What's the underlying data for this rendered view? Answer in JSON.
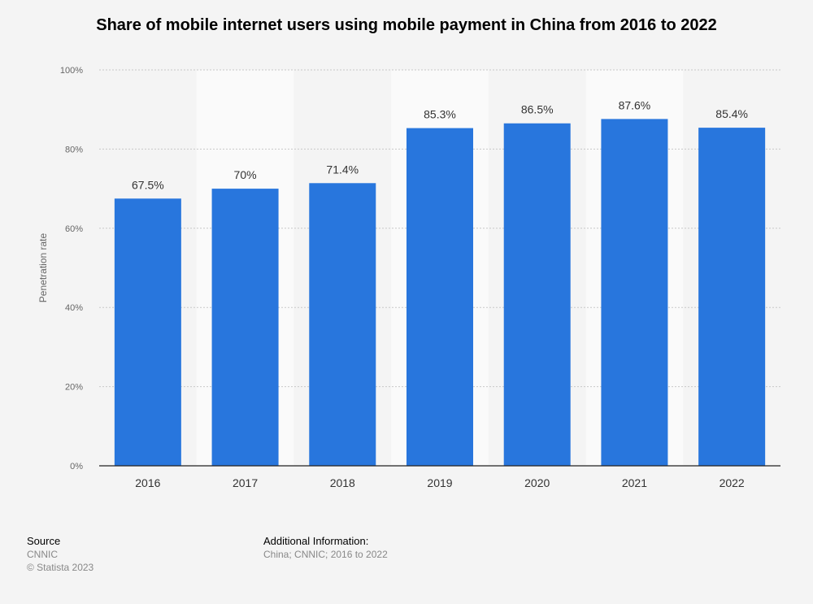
{
  "chart_data": {
    "type": "bar",
    "title": "Share of mobile internet users using mobile payment in China from 2016 to 2022",
    "xlabel": "",
    "ylabel": "Penetration rate",
    "categories": [
      "2016",
      "2017",
      "2018",
      "2019",
      "2020",
      "2021",
      "2022"
    ],
    "values": [
      67.5,
      70,
      71.4,
      85.3,
      86.5,
      87.6,
      85.4
    ],
    "value_labels": [
      "67.5%",
      "70%",
      "71.4%",
      "85.3%",
      "86.5%",
      "87.6%",
      "85.4%"
    ],
    "ylim": [
      0,
      100
    ],
    "yticks": [
      0,
      20,
      40,
      60,
      80,
      100
    ],
    "ytick_labels": [
      "0%",
      "20%",
      "40%",
      "60%",
      "80%",
      "100%"
    ],
    "grid": true,
    "bar_color": "#2876dd",
    "alt_column_shading": true
  },
  "footer": {
    "source_heading": "Source",
    "source_name": "CNNIC",
    "copyright": "© Statista 2023",
    "info_heading": "Additional Information:",
    "info_text": "China; CNNIC; 2016 to 2022"
  }
}
